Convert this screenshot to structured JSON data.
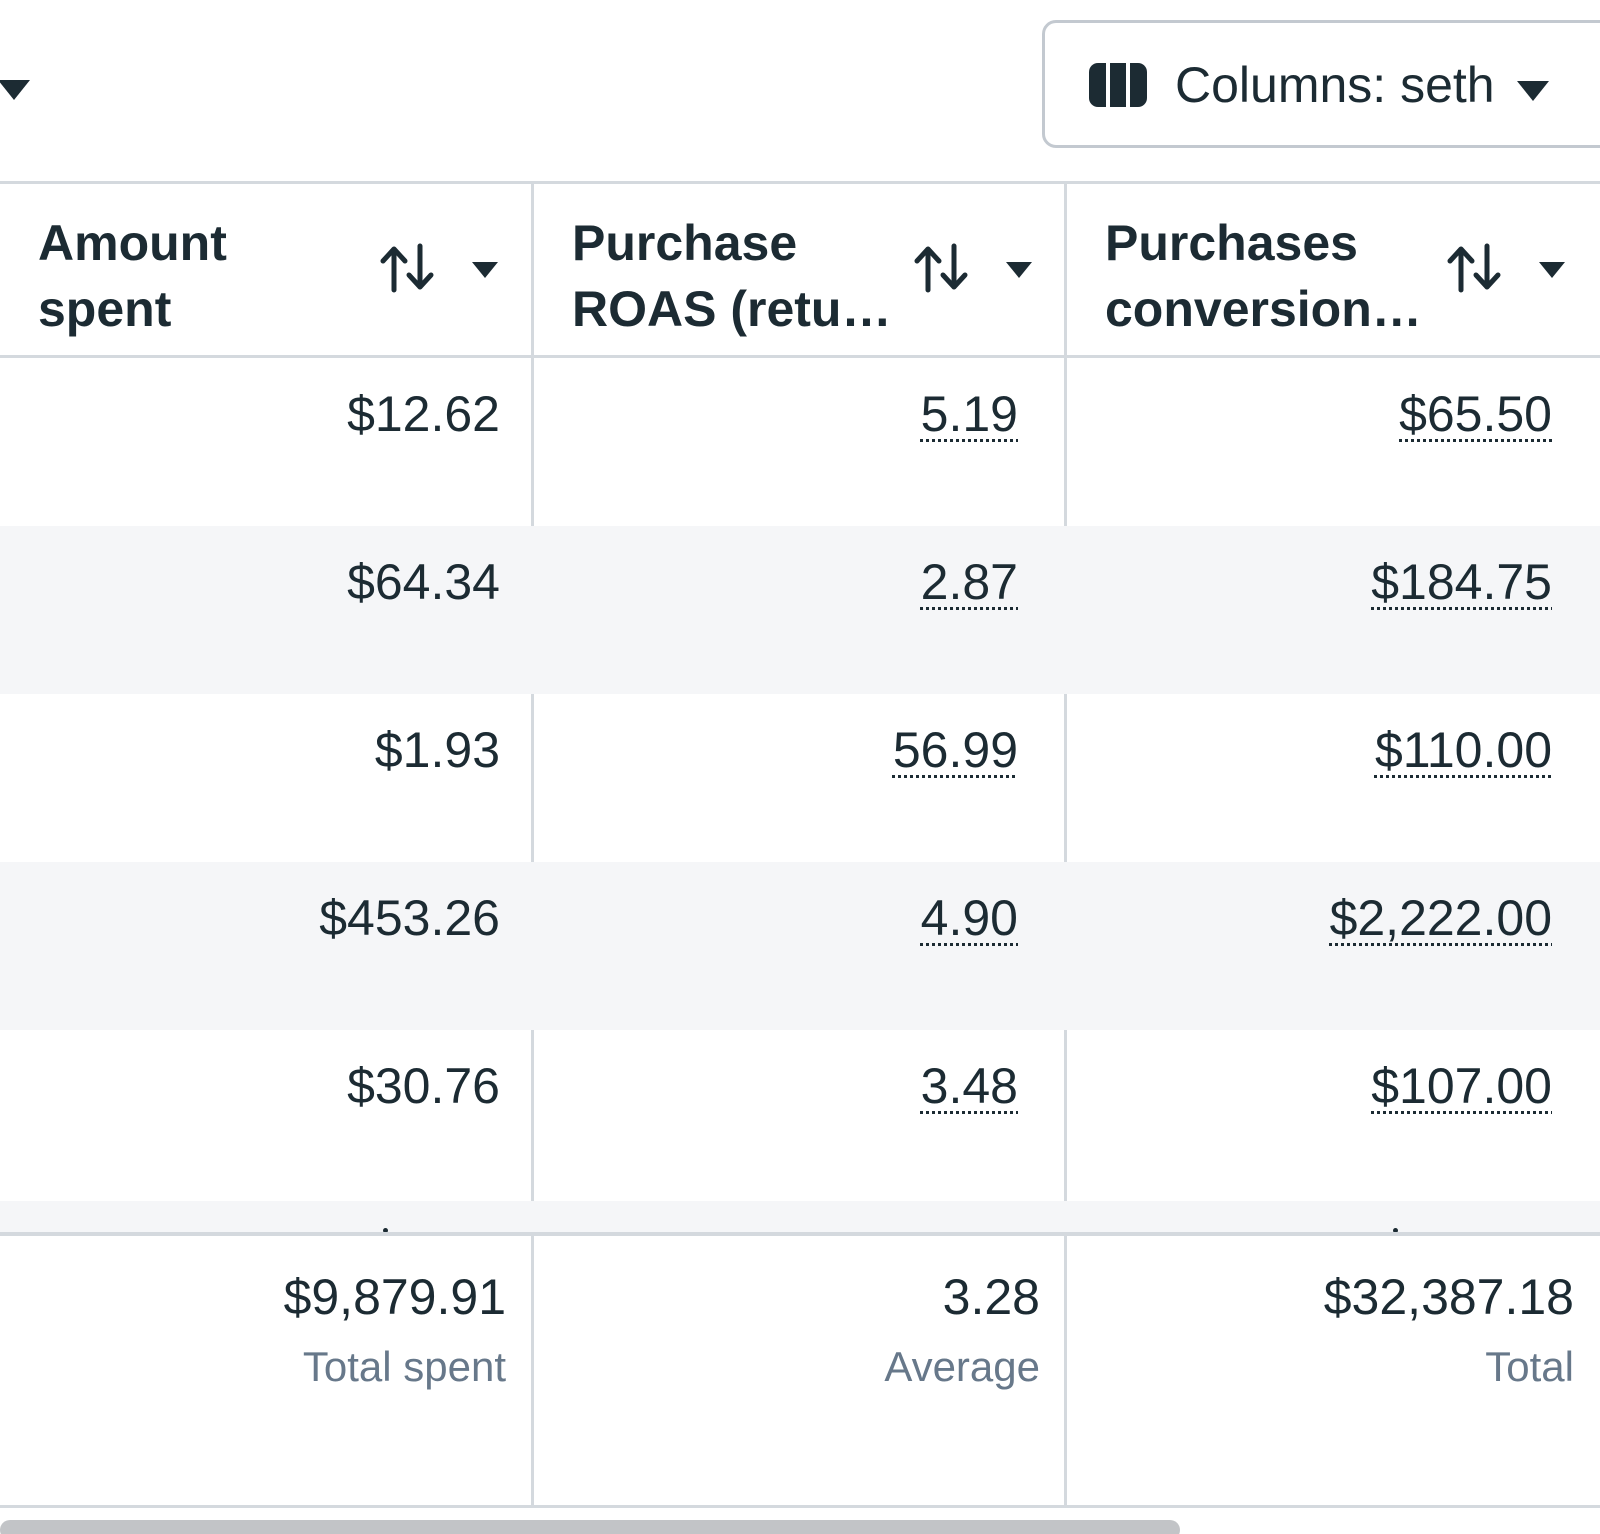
{
  "toolbar": {
    "left_dropdown_icon": "chevron-down-icon",
    "columns_button": {
      "label": "Columns: seth",
      "icon": "columns-icon"
    }
  },
  "table": {
    "columns": [
      {
        "line1": "Amount",
        "line2": "spent",
        "sort_icon": "sort-icon",
        "menu_icon": "chevron-down-icon"
      },
      {
        "line1": "Purchase",
        "line2": "ROAS (retu…",
        "sort_icon": "sort-icon",
        "menu_icon": "chevron-down-icon"
      },
      {
        "line1": "Purchases",
        "line2": "conversion…",
        "sort_icon": "sort-icon",
        "menu_icon": "chevron-down-icon"
      }
    ],
    "rows": [
      {
        "amount_spent": "$12.62",
        "purchase_roas": "5.19",
        "purchases_conversion": "$65.50"
      },
      {
        "amount_spent": "$64.34",
        "purchase_roas": "2.87",
        "purchases_conversion": "$184.75"
      },
      {
        "amount_spent": "$1.93",
        "purchase_roas": "56.99",
        "purchases_conversion": "$110.00"
      },
      {
        "amount_spent": "$453.26",
        "purchase_roas": "4.90",
        "purchases_conversion": "$2,222.00"
      },
      {
        "amount_spent": "$30.76",
        "purchase_roas": "3.48",
        "purchases_conversion": "$107.00"
      }
    ],
    "summary": {
      "amount_spent": {
        "value": "$9,879.91",
        "label": "Total spent"
      },
      "purchase_roas": {
        "value": "3.28",
        "label": "Average"
      },
      "purchases_conversion": {
        "value": "$32,387.18",
        "label": "Total"
      }
    }
  },
  "colors": {
    "text": "#1c2b33",
    "muted_text": "#67788a",
    "border": "#d4d9de",
    "alt_row": "#f5f6f8",
    "scrollbar": "#c2c4c7"
  }
}
